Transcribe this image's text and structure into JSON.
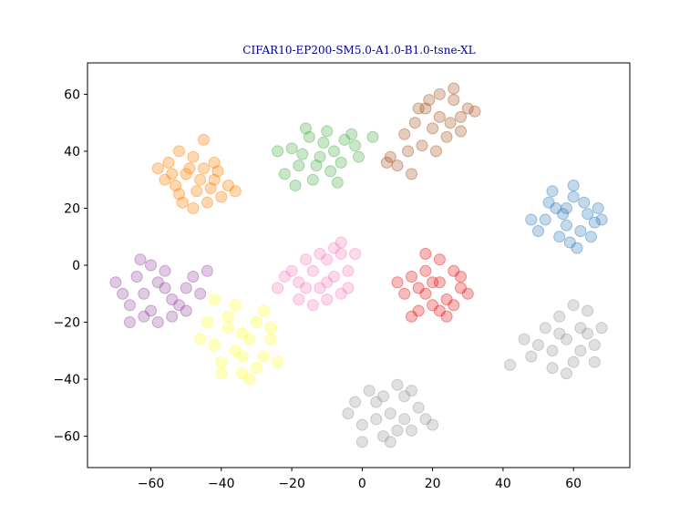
{
  "chart_data": {
    "type": "scatter",
    "title": "CIFAR10-EP200-SM5.0-A1.0-B1.0-tsne-XL",
    "title_color": "#00008b",
    "xlabel": "",
    "ylabel": "",
    "xlim": [
      -78,
      76
    ],
    "ylim": [
      -71,
      71
    ],
    "xticks": [
      -60,
      -40,
      -20,
      0,
      20,
      40,
      60
    ],
    "yticks": [
      -60,
      -40,
      -20,
      0,
      20,
      40,
      60
    ],
    "grid": false,
    "legend": "none",
    "marker_alpha": 0.3,
    "series": [
      {
        "color": "#ff7f00",
        "points": [
          [
            -55,
            36
          ],
          [
            -52,
            40
          ],
          [
            -48,
            38
          ],
          [
            -56,
            30
          ],
          [
            -50,
            32
          ],
          [
            -45,
            34
          ],
          [
            -42,
            30
          ],
          [
            -47,
            26
          ],
          [
            -52,
            25
          ],
          [
            -44,
            22
          ],
          [
            -40,
            24
          ],
          [
            -38,
            28
          ],
          [
            -48,
            20
          ],
          [
            -42,
            36
          ],
          [
            -58,
            34
          ],
          [
            -53,
            28
          ],
          [
            -46,
            30
          ],
          [
            -41,
            33
          ],
          [
            -49,
            34
          ],
          [
            -51,
            22
          ],
          [
            -45,
            44
          ],
          [
            -36,
            26
          ],
          [
            -54,
            32
          ],
          [
            -43,
            27
          ]
        ]
      },
      {
        "color": "#4daf4a",
        "points": [
          [
            -20,
            41
          ],
          [
            -15,
            45
          ],
          [
            -10,
            47
          ],
          [
            -5,
            44
          ],
          [
            -12,
            38
          ],
          [
            -18,
            35
          ],
          [
            -8,
            40
          ],
          [
            -2,
            42
          ],
          [
            -14,
            30
          ],
          [
            -22,
            32
          ],
          [
            -16,
            48
          ],
          [
            -6,
            36
          ],
          [
            -11,
            43
          ],
          [
            -19,
            28
          ],
          [
            -3,
            46
          ],
          [
            -9,
            33
          ],
          [
            -13,
            35
          ],
          [
            -24,
            40
          ],
          [
            -7,
            29
          ],
          [
            -1,
            38
          ],
          [
            3,
            45
          ],
          [
            -17,
            39
          ]
        ]
      },
      {
        "color": "#a65628",
        "points": [
          [
            18,
            55
          ],
          [
            22,
            60
          ],
          [
            26,
            58
          ],
          [
            28,
            52
          ],
          [
            20,
            48
          ],
          [
            15,
            50
          ],
          [
            24,
            45
          ],
          [
            30,
            55
          ],
          [
            17,
            42
          ],
          [
            12,
            46
          ],
          [
            22,
            52
          ],
          [
            26,
            62
          ],
          [
            19,
            58
          ],
          [
            13,
            40
          ],
          [
            21,
            40
          ],
          [
            8,
            38
          ],
          [
            10,
            35
          ],
          [
            28,
            47
          ],
          [
            16,
            55
          ],
          [
            25,
            50
          ],
          [
            7,
            36
          ],
          [
            14,
            32
          ],
          [
            32,
            54
          ]
        ]
      },
      {
        "color": "#377eb8",
        "points": [
          [
            55,
            20
          ],
          [
            60,
            24
          ],
          [
            64,
            18
          ],
          [
            58,
            14
          ],
          [
            52,
            16
          ],
          [
            62,
            12
          ],
          [
            66,
            15
          ],
          [
            54,
            26
          ],
          [
            59,
            8
          ],
          [
            50,
            12
          ],
          [
            57,
            18
          ],
          [
            63,
            22
          ],
          [
            48,
            16
          ],
          [
            61,
            6
          ],
          [
            56,
            10
          ],
          [
            67,
            20
          ],
          [
            53,
            22
          ],
          [
            60,
            28
          ],
          [
            65,
            10
          ],
          [
            58,
            20
          ],
          [
            68,
            16
          ]
        ]
      },
      {
        "color": "#f781bf",
        "points": [
          [
            -14,
            -2
          ],
          [
            -10,
            2
          ],
          [
            -6,
            4
          ],
          [
            -18,
            -6
          ],
          [
            -12,
            -8
          ],
          [
            -8,
            -4
          ],
          [
            -4,
            -2
          ],
          [
            -16,
            2
          ],
          [
            -20,
            -2
          ],
          [
            -10,
            -12
          ],
          [
            -6,
            -10
          ],
          [
            -14,
            -14
          ],
          [
            -2,
            4
          ],
          [
            -22,
            -4
          ],
          [
            -8,
            6
          ],
          [
            -18,
            -12
          ],
          [
            -12,
            4
          ],
          [
            -4,
            -8
          ],
          [
            -16,
            -8
          ],
          [
            -24,
            -8
          ],
          [
            -6,
            8
          ],
          [
            -10,
            -6
          ]
        ]
      },
      {
        "color": "#e41a1c",
        "points": [
          [
            18,
            -10
          ],
          [
            22,
            -6
          ],
          [
            26,
            -2
          ],
          [
            14,
            -4
          ],
          [
            20,
            -14
          ],
          [
            24,
            -12
          ],
          [
            28,
            -8
          ],
          [
            16,
            -16
          ],
          [
            12,
            -10
          ],
          [
            22,
            2
          ],
          [
            18,
            -2
          ],
          [
            30,
            -10
          ],
          [
            10,
            -6
          ],
          [
            24,
            -18
          ],
          [
            20,
            -6
          ],
          [
            16,
            -8
          ],
          [
            26,
            -14
          ],
          [
            14,
            -18
          ],
          [
            18,
            4
          ],
          [
            28,
            -4
          ],
          [
            22,
            -16
          ]
        ]
      },
      {
        "color": "#984ea3",
        "points": [
          [
            -62,
            -10
          ],
          [
            -58,
            -6
          ],
          [
            -54,
            -12
          ],
          [
            -66,
            -14
          ],
          [
            -60,
            -16
          ],
          [
            -56,
            -2
          ],
          [
            -50,
            -8
          ],
          [
            -64,
            -4
          ],
          [
            -68,
            -10
          ],
          [
            -52,
            -14
          ],
          [
            -58,
            -20
          ],
          [
            -62,
            -18
          ],
          [
            -48,
            -4
          ],
          [
            -54,
            -18
          ],
          [
            -46,
            -10
          ],
          [
            -66,
            -20
          ],
          [
            -60,
            0
          ],
          [
            -44,
            -2
          ],
          [
            -50,
            -16
          ],
          [
            -70,
            -6
          ],
          [
            -56,
            -8
          ],
          [
            -63,
            2
          ]
        ]
      },
      {
        "color": "#ffff33",
        "points": [
          [
            -36,
            -30
          ],
          [
            -32,
            -26
          ],
          [
            -40,
            -34
          ],
          [
            -28,
            -32
          ],
          [
            -34,
            -38
          ],
          [
            -38,
            -22
          ],
          [
            -30,
            -20
          ],
          [
            -42,
            -28
          ],
          [
            -26,
            -26
          ],
          [
            -36,
            -14
          ],
          [
            -32,
            -40
          ],
          [
            -44,
            -20
          ],
          [
            -24,
            -34
          ],
          [
            -40,
            -38
          ],
          [
            -28,
            -16
          ],
          [
            -34,
            -24
          ],
          [
            -46,
            -26
          ],
          [
            -30,
            -36
          ],
          [
            -38,
            -18
          ],
          [
            -42,
            -12
          ],
          [
            -34,
            -32
          ],
          [
            -26,
            -22
          ]
        ]
      },
      {
        "color": "#999999",
        "points": [
          [
            8,
            -52
          ],
          [
            4,
            -48
          ],
          [
            12,
            -46
          ],
          [
            0,
            -56
          ],
          [
            6,
            -60
          ],
          [
            14,
            -58
          ],
          [
            10,
            -42
          ],
          [
            -2,
            -48
          ],
          [
            16,
            -50
          ],
          [
            2,
            -44
          ],
          [
            18,
            -54
          ],
          [
            8,
            -62
          ],
          [
            -4,
            -52
          ],
          [
            12,
            -54
          ],
          [
            6,
            -46
          ],
          [
            20,
            -56
          ],
          [
            0,
            -62
          ],
          [
            14,
            -44
          ],
          [
            4,
            -54
          ],
          [
            10,
            -58
          ]
        ]
      },
      {
        "color": "#999999",
        "points": [
          [
            58,
            -26
          ],
          [
            62,
            -22
          ],
          [
            54,
            -30
          ],
          [
            66,
            -28
          ],
          [
            60,
            -34
          ],
          [
            52,
            -22
          ],
          [
            64,
            -16
          ],
          [
            56,
            -18
          ],
          [
            50,
            -28
          ],
          [
            68,
            -22
          ],
          [
            58,
            -38
          ],
          [
            62,
            -30
          ],
          [
            48,
            -32
          ],
          [
            54,
            -36
          ],
          [
            66,
            -34
          ],
          [
            60,
            -14
          ],
          [
            46,
            -26
          ],
          [
            56,
            -24
          ],
          [
            64,
            -24
          ],
          [
            42,
            -35
          ]
        ]
      }
    ]
  }
}
